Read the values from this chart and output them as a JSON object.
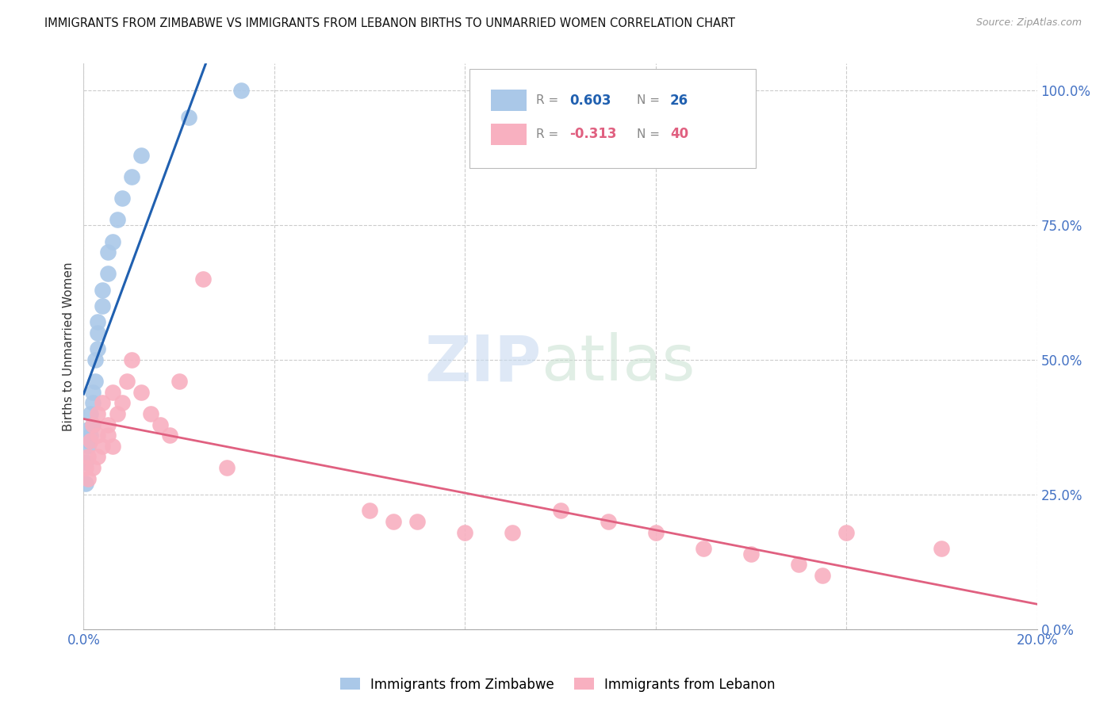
{
  "title": "IMMIGRANTS FROM ZIMBABWE VS IMMIGRANTS FROM LEBANON BIRTHS TO UNMARRIED WOMEN CORRELATION CHART",
  "source": "Source: ZipAtlas.com",
  "ylabel": "Births to Unmarried Women",
  "ylabel_right_ticks": [
    0.0,
    0.25,
    0.5,
    0.75,
    1.0
  ],
  "ylabel_right_labels": [
    "0.0%",
    "25.0%",
    "50.0%",
    "75.0%",
    "100.0%"
  ],
  "legend_blue_r": "0.603",
  "legend_blue_n": "26",
  "legend_pink_r": "-0.313",
  "legend_pink_n": "40",
  "legend_blue_label": "Immigrants from Zimbabwe",
  "legend_pink_label": "Immigrants from Lebanon",
  "blue_color": "#aac8e8",
  "blue_line_color": "#2060b0",
  "pink_color": "#f8b0c0",
  "pink_line_color": "#e06080",
  "xmin": 0.0,
  "xmax": 0.2,
  "ymin": 0.0,
  "ymax": 1.05,
  "blue_x": [
    0.0005,
    0.0005,
    0.001,
    0.001,
    0.001,
    0.0015,
    0.0015,
    0.002,
    0.002,
    0.002,
    0.0025,
    0.0025,
    0.003,
    0.003,
    0.003,
    0.004,
    0.004,
    0.005,
    0.005,
    0.006,
    0.007,
    0.008,
    0.01,
    0.012,
    0.022,
    0.033
  ],
  "blue_y": [
    0.27,
    0.31,
    0.34,
    0.35,
    0.37,
    0.36,
    0.4,
    0.38,
    0.42,
    0.44,
    0.46,
    0.5,
    0.52,
    0.55,
    0.57,
    0.6,
    0.63,
    0.66,
    0.7,
    0.72,
    0.76,
    0.8,
    0.84,
    0.88,
    0.95,
    1.0
  ],
  "pink_x": [
    0.0005,
    0.001,
    0.001,
    0.0015,
    0.002,
    0.002,
    0.003,
    0.003,
    0.003,
    0.004,
    0.004,
    0.005,
    0.005,
    0.006,
    0.006,
    0.007,
    0.008,
    0.009,
    0.01,
    0.012,
    0.014,
    0.016,
    0.018,
    0.02,
    0.025,
    0.03,
    0.06,
    0.065,
    0.07,
    0.08,
    0.09,
    0.1,
    0.11,
    0.12,
    0.13,
    0.14,
    0.15,
    0.155,
    0.16,
    0.18
  ],
  "pink_y": [
    0.3,
    0.28,
    0.32,
    0.35,
    0.3,
    0.38,
    0.32,
    0.36,
    0.4,
    0.34,
    0.42,
    0.36,
    0.38,
    0.34,
    0.44,
    0.4,
    0.42,
    0.46,
    0.5,
    0.44,
    0.4,
    0.38,
    0.36,
    0.46,
    0.65,
    0.3,
    0.22,
    0.2,
    0.2,
    0.18,
    0.18,
    0.22,
    0.2,
    0.18,
    0.15,
    0.14,
    0.12,
    0.1,
    0.18,
    0.15
  ]
}
